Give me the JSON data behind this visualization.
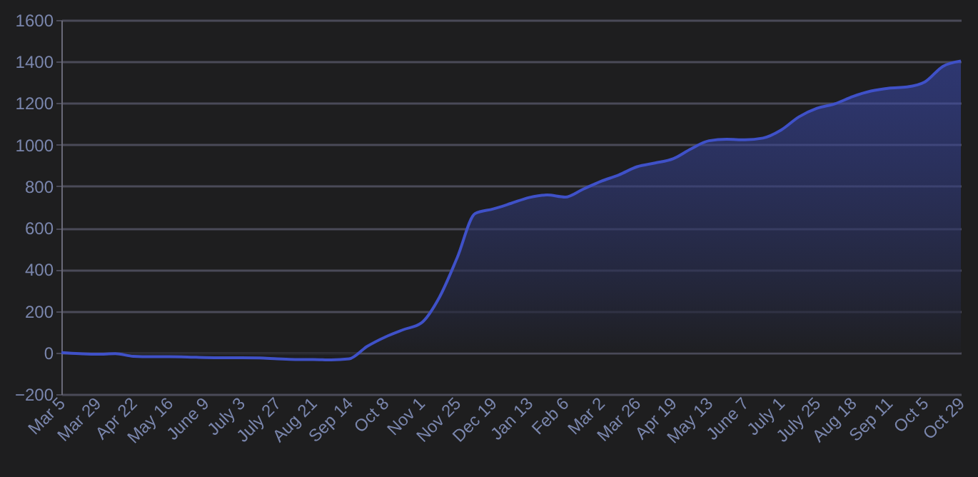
{
  "chart_data": {
    "type": "area",
    "categories": [
      "Mar 5",
      null,
      "Mar 29",
      null,
      "Apr 22",
      null,
      "May 16",
      null,
      "June 9",
      null,
      "July 3",
      null,
      "July 27",
      null,
      "Aug 21",
      null,
      "Sep 14",
      null,
      "Oct 8",
      null,
      "Nov 1",
      null,
      "Nov 25",
      null,
      "Dec 19",
      null,
      "Jan 13",
      null,
      "Feb 6",
      null,
      "Mar 2",
      null,
      "Mar 26",
      null,
      "Apr 19",
      null,
      "May 13",
      null,
      "June 7",
      null,
      "July 1",
      null,
      "July 25",
      null,
      "Aug 18",
      null,
      "Sep 11",
      null,
      "Oct 5",
      null,
      "Oct 29"
    ],
    "series": [
      {
        "color": "#3f51c8",
        "values": [
          0,
          -5,
          -8,
          -5,
          -18,
          -20,
          -20,
          -21,
          -24,
          -25,
          -25,
          -26,
          -30,
          -33,
          -33,
          -35,
          -30,
          30,
          75,
          110,
          142,
          264,
          456,
          669,
          691,
          718,
          746,
          758,
          748,
          786,
          824,
          855,
          894,
          912,
          932,
          980,
          1019,
          1026,
          1024,
          1032,
          1070,
          1134,
          1175,
          1197,
          1232,
          1258,
          1272,
          1278,
          1302,
          1377,
          1403
        ]
      }
    ],
    "ylim": [
      -200,
      1600
    ],
    "yticks": [
      -200,
      0,
      200,
      400,
      600,
      800,
      1000,
      1200,
      1400,
      1600
    ],
    "grid": "y"
  }
}
